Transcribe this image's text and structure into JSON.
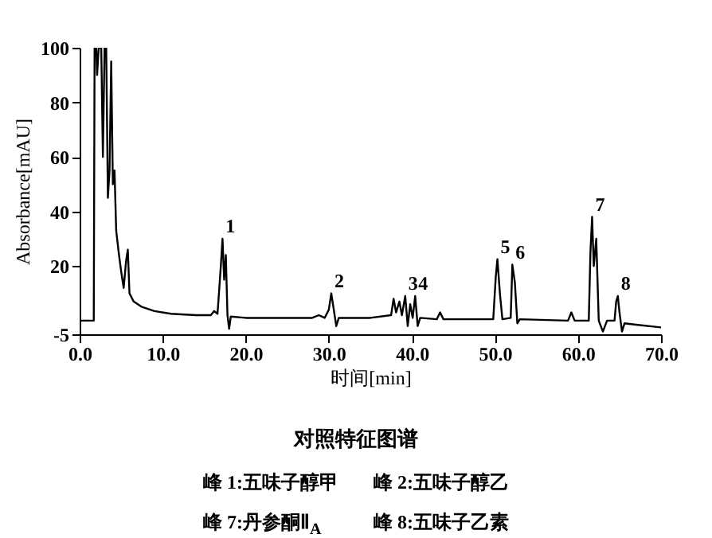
{
  "chart_data": {
    "type": "line",
    "title": "对照特征图谱",
    "xlabel": "时间[min]",
    "ylabel": "Absorbance[mAU]",
    "x": [
      0,
      1.7,
      1.8,
      2.0,
      2.1,
      2.3,
      2.6,
      2.8,
      3.0,
      3.2,
      3.4,
      3.6,
      3.8,
      4.0,
      4.2,
      4.4,
      4.7,
      5.0,
      5.3,
      5.6,
      5.8,
      6.0,
      6.5,
      7.5,
      9,
      11,
      14,
      15.8,
      16.2,
      16.6,
      17.0,
      17.2,
      17.4,
      17.6,
      17.8,
      18.0,
      18.2,
      20,
      25,
      28,
      28.8,
      29.5,
      30.0,
      30.3,
      30.6,
      30.9,
      31.2,
      35,
      37.5,
      37.8,
      38.1,
      38.5,
      38.8,
      39.2,
      39.5,
      39.8,
      40.1,
      40.4,
      40.7,
      41,
      43,
      43.4,
      43.8,
      46,
      49.8,
      50.1,
      50.3,
      50.6,
      50.9,
      51.9,
      52.1,
      52.4,
      52.7,
      53,
      58.8,
      59.2,
      59.6,
      61.3,
      61.5,
      61.7,
      61.9,
      62.2,
      62.5,
      63,
      63.5,
      64.4,
      64.6,
      64.8,
      65,
      65.3,
      65.6,
      67,
      70
    ],
    "series": [
      {
        "color": "#000000",
        "values": [
          0,
          0,
          100,
          100,
          90,
          100,
          100,
          60,
          100,
          100,
          45,
          55,
          95,
          50,
          55,
          33,
          25,
          18,
          12,
          22,
          26,
          10,
          7,
          5,
          3.5,
          2.5,
          2,
          2,
          3.5,
          2.5,
          20,
          30,
          15,
          24,
          2,
          -3,
          1.5,
          1,
          1,
          1,
          2,
          1,
          4,
          10,
          4,
          -2,
          1,
          1,
          2,
          8,
          3,
          7,
          2,
          9,
          -2,
          6,
          1,
          9,
          -2,
          1,
          0.5,
          3,
          0.5,
          0.5,
          0.5,
          16,
          22.5,
          10,
          0.5,
          1,
          20.5,
          14,
          -1,
          0.5,
          0,
          3,
          0,
          0,
          25,
          38,
          20,
          30,
          0,
          -4,
          0,
          0,
          7,
          9,
          3,
          -4,
          -1,
          -1.5,
          -2.5
        ]
      }
    ],
    "xlim": [
      0,
      70
    ],
    "ylim": [
      -5,
      100
    ],
    "xticks": [
      {
        "value": 0,
        "label": "0.0"
      },
      {
        "value": 10,
        "label": "10.0"
      },
      {
        "value": 20,
        "label": "20.0"
      },
      {
        "value": 30,
        "label": "30.0"
      },
      {
        "value": 40,
        "label": "40.0"
      },
      {
        "value": 50,
        "label": "50.0"
      },
      {
        "value": 60,
        "label": "60.0"
      },
      {
        "value": 70,
        "label": "70.0"
      }
    ],
    "yticks": [
      -5,
      20,
      40,
      60,
      80,
      100
    ],
    "grid": false,
    "legend": false,
    "marker": "none",
    "line_style": "solid",
    "annotations": [
      {
        "text": "1",
        "x": 17.2,
        "y": 30
      },
      {
        "text": "2",
        "x": 30.3,
        "y": 10
      },
      {
        "text": "3",
        "x": 39.2,
        "y": 9
      },
      {
        "text": "4",
        "x": 40.4,
        "y": 9
      },
      {
        "text": "5",
        "x": 50.3,
        "y": 22.5
      },
      {
        "text": "6",
        "x": 52.1,
        "y": 20.5
      },
      {
        "text": "7",
        "x": 61.7,
        "y": 38
      },
      {
        "text": "8",
        "x": 64.8,
        "y": 9
      },
      "峰 1:五味子醇甲",
      "峰 2:五味子醇乙",
      "峰 7:丹参酮Ⅱ$_{A}$",
      "峰 8:五味子乙素"
    ]
  }
}
